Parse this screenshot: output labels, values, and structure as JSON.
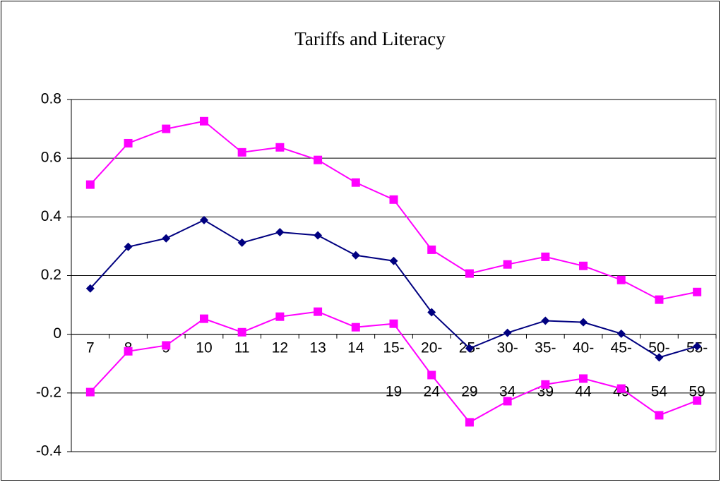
{
  "chart_data": {
    "type": "line",
    "title": "Tariffs and Literacy",
    "categories": [
      "7",
      "8",
      "9",
      "10",
      "11",
      "12",
      "13",
      "14",
      "15-19",
      "20-24",
      "25-29",
      "30-34",
      "35-39",
      "40-44",
      "45-49",
      "50-54",
      "55-59"
    ],
    "series": [
      {
        "color": "#000080",
        "marker": "diamond",
        "values": [
          0.156,
          0.298,
          0.327,
          0.389,
          0.312,
          0.348,
          0.337,
          0.269,
          0.25,
          0.075,
          -0.048,
          0.005,
          0.046,
          0.041,
          0.002,
          -0.079,
          -0.041
        ]
      },
      {
        "color": "#ff00ff",
        "marker": "square",
        "values": [
          0.51,
          0.651,
          0.7,
          0.726,
          0.62,
          0.637,
          0.594,
          0.517,
          0.459,
          0.288,
          0.207,
          0.238,
          0.264,
          0.233,
          0.185,
          0.118,
          0.144
        ]
      },
      {
        "color": "#ff00ff",
        "marker": "square",
        "values": [
          -0.197,
          -0.058,
          -0.038,
          0.053,
          0.007,
          0.06,
          0.077,
          0.024,
          0.036,
          -0.139,
          -0.3,
          -0.228,
          -0.171,
          -0.151,
          -0.185,
          -0.276,
          -0.226
        ]
      }
    ],
    "ylim": [
      -0.4,
      0.8
    ],
    "yticks": [
      -0.4,
      -0.2,
      0,
      0.2,
      0.4,
      0.6,
      0.8
    ],
    "grid": true
  }
}
